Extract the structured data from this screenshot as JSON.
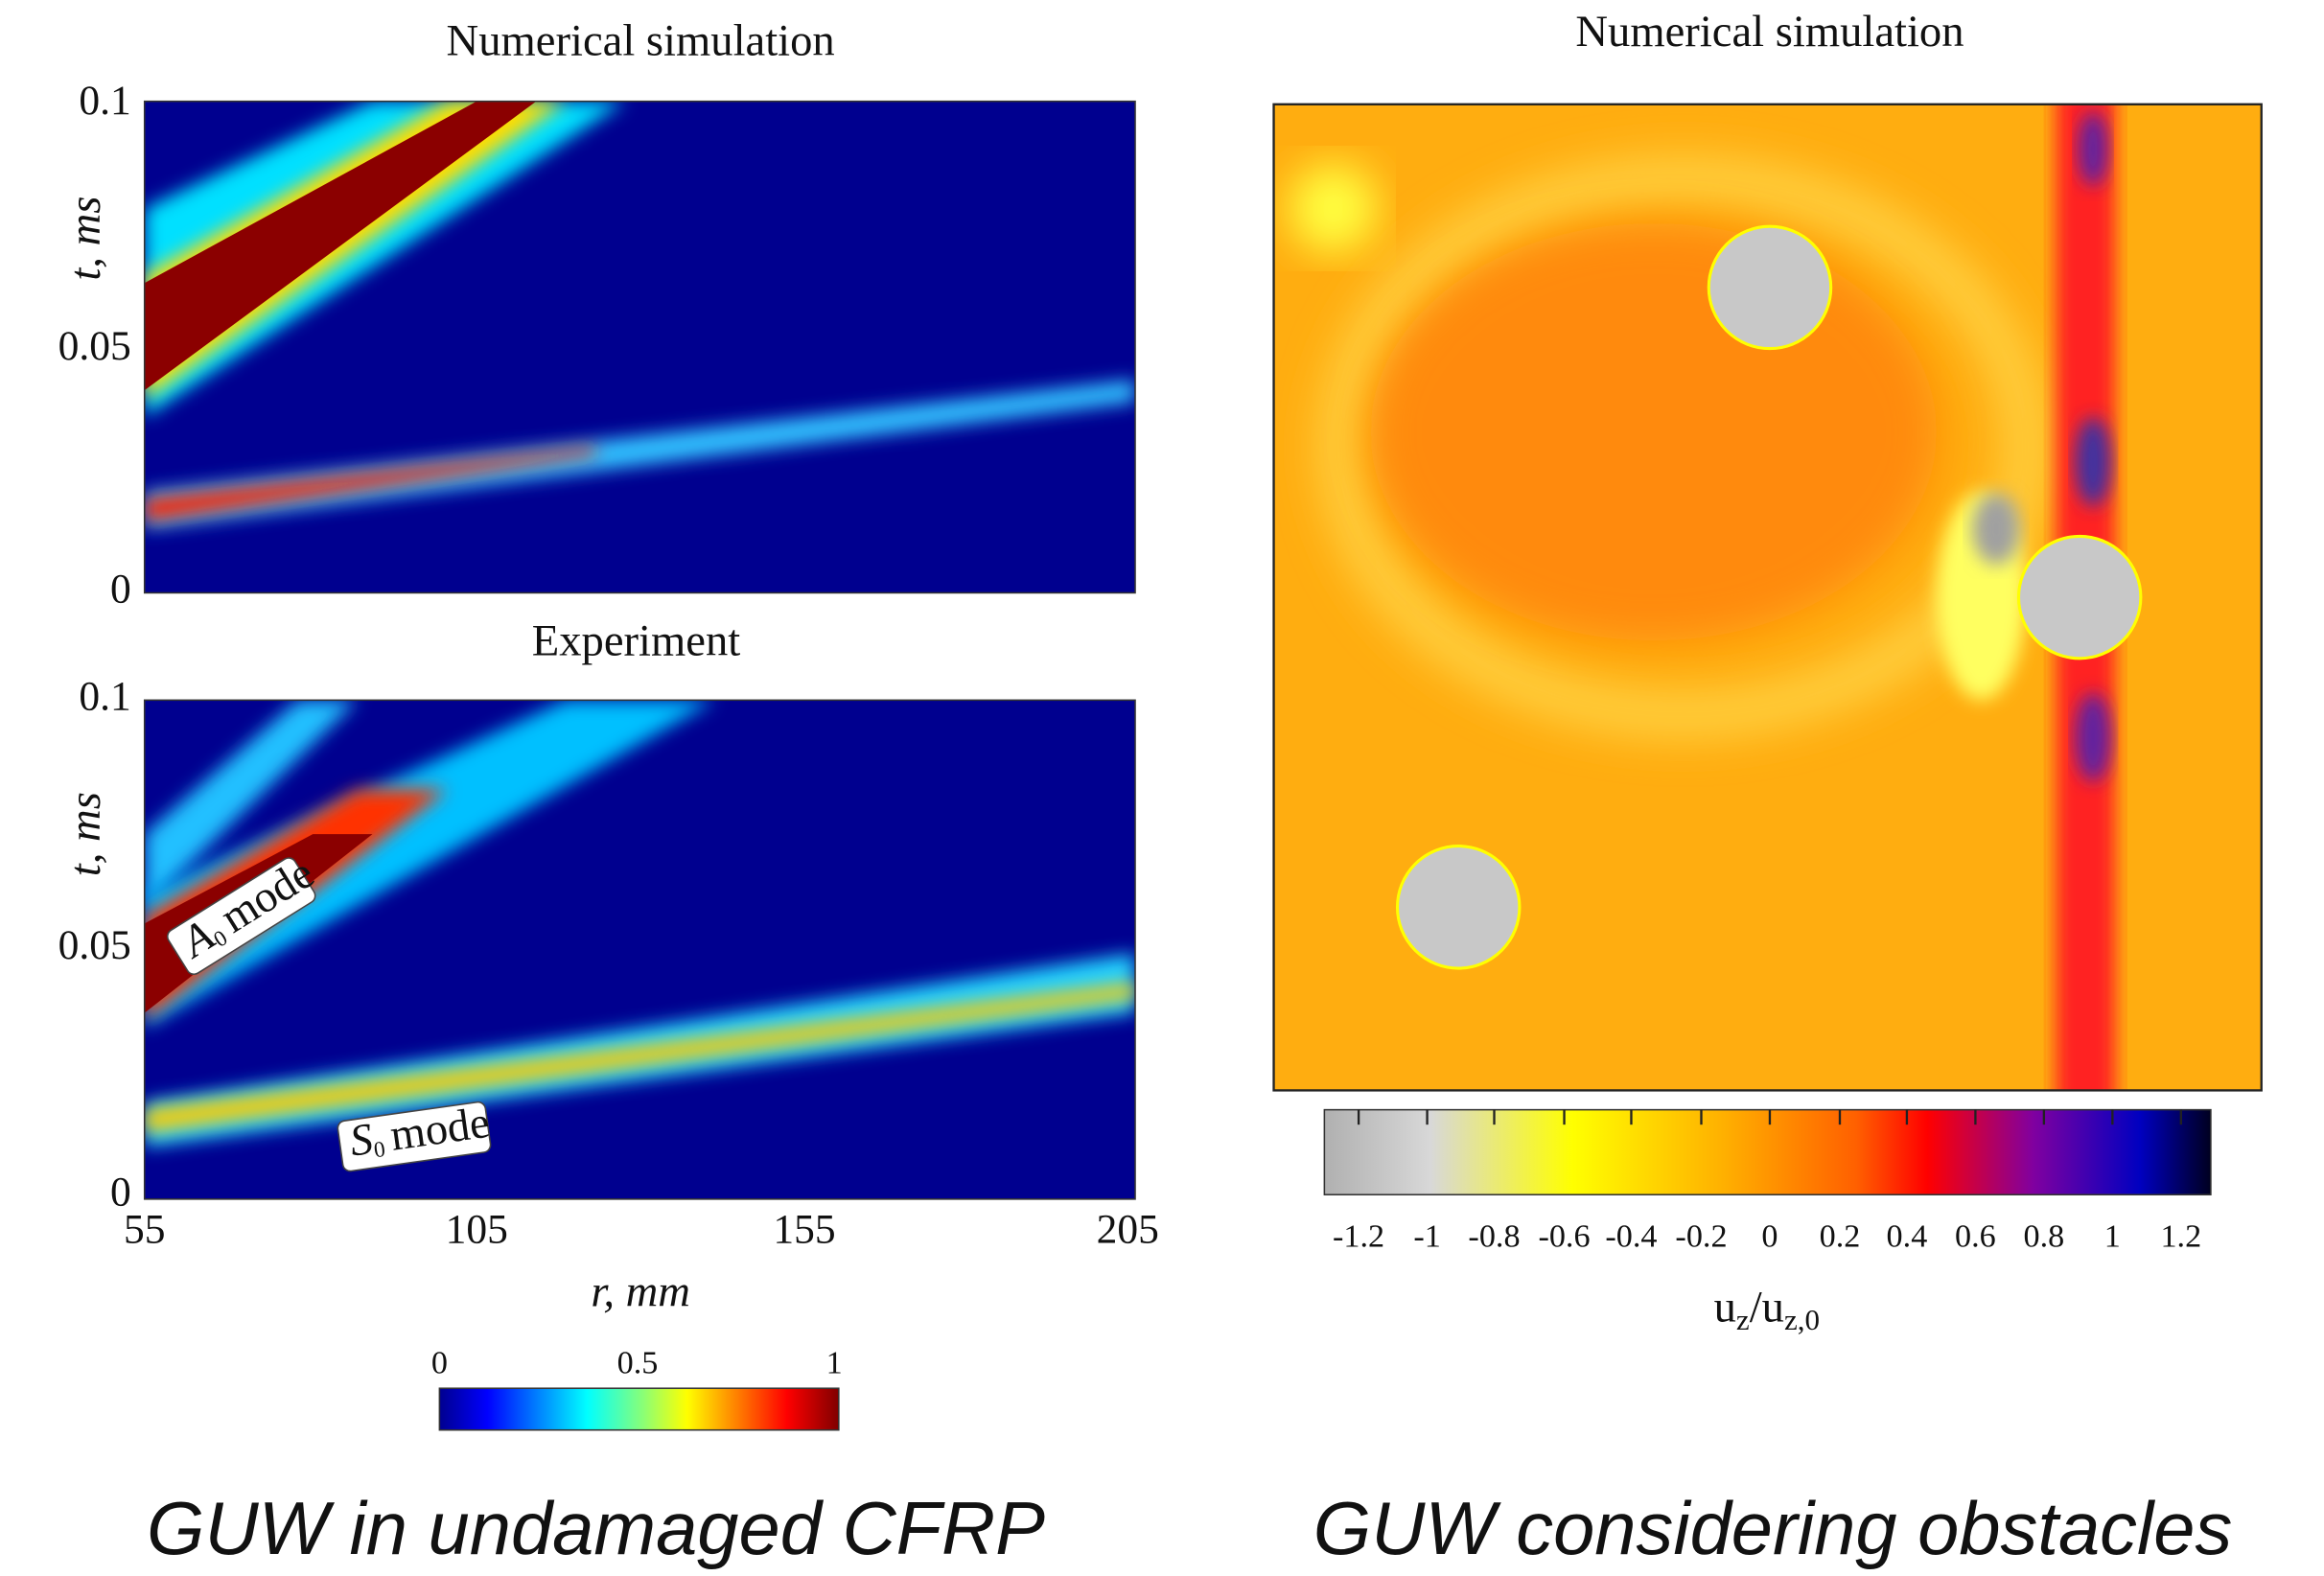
{
  "left": {
    "top_panel": {
      "title": "Numerical simulation",
      "y_label": "t, ms",
      "y_ticks": [
        "0.1",
        "0.05",
        "0"
      ]
    },
    "bottom_panel": {
      "title": "Experiment",
      "y_label": "t, ms",
      "y_ticks": [
        "0.1",
        "0.05",
        "0"
      ],
      "x_ticks": [
        "55",
        "105",
        "155",
        "205"
      ],
      "x_label": "r, mm",
      "annotations": [
        {
          "symbol": "A",
          "subscript": "0",
          "text": "mode"
        },
        {
          "symbol": "S",
          "subscript": "0",
          "text": "mode"
        }
      ]
    },
    "colorbar": {
      "ticks": [
        "0",
        "0.5",
        "1"
      ]
    },
    "caption": "GUW in undamaged CFRP"
  },
  "right": {
    "title": "Numerical simulation",
    "colorbar": {
      "ticks": [
        "-1.2",
        "-1",
        "-0.8",
        "-0.6",
        "-0.4",
        "-0.2",
        "0",
        "0.2",
        "0.4",
        "0.6",
        "0.8",
        "1",
        "1.2"
      ],
      "label": {
        "base": "u",
        "sub": "z",
        "sep": "/",
        "base2": "u",
        "sub2": "z,0"
      }
    },
    "caption": "GUW considering obstacles"
  }
}
